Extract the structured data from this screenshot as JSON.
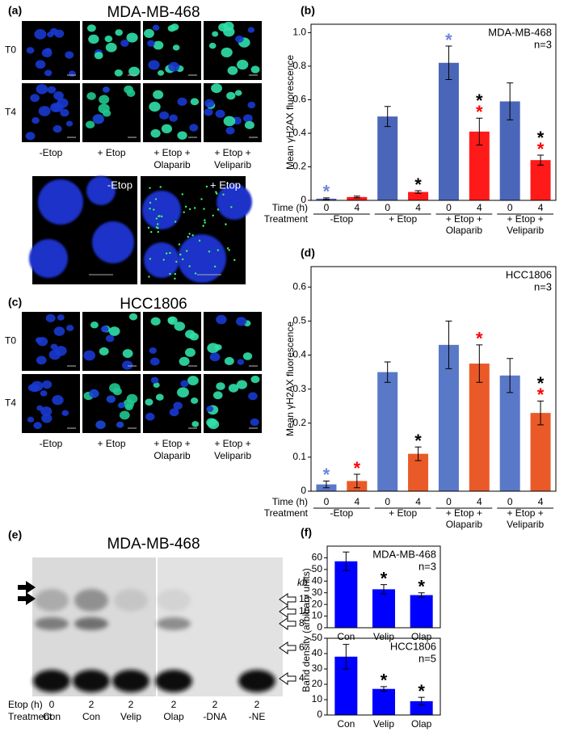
{
  "panel_a": {
    "label": "(a)",
    "title": "MDA-MB-468",
    "rows": [
      "T0",
      "T4"
    ],
    "columns": [
      [
        "-Etop"
      ],
      [
        "+ Etop"
      ],
      [
        "+ Etop +",
        "Olaparib"
      ],
      [
        "+ Etop +",
        "Veliparib"
      ]
    ],
    "zoom_labels": [
      "-Etop",
      "+ Etop"
    ]
  },
  "panel_c": {
    "label": "(c)",
    "title": "HCC1806",
    "rows": [
      "T0",
      "T4"
    ],
    "columns": [
      [
        "-Etop"
      ],
      [
        "+ Etop"
      ],
      [
        "+ Etop +",
        "Olaparib"
      ],
      [
        "+ Etop +",
        "Veliparib"
      ]
    ]
  },
  "panel_e": {
    "label": "(e)",
    "title": "MDA-MB-468",
    "size_unit": "kb",
    "sizes": [
      "15",
      "10",
      "8",
      "6",
      "4"
    ],
    "row_labels": [
      "Etop (h)",
      "Treatment"
    ],
    "etop": [
      "0",
      "2",
      "2",
      "2",
      "2",
      "2"
    ],
    "treatment": [
      "Con",
      "Con",
      "Velip",
      "Olap",
      "-DNA",
      "-NE"
    ]
  },
  "chart_data": [
    {
      "type": "bar",
      "panel": "(b)",
      "title": "MDA-MB-468",
      "subtitle": "n=3",
      "y_label": "Mean γH2AX fluorescence",
      "time_label": "Time (h)",
      "group_label": "Treatment",
      "categories": [
        "0",
        "4",
        "0",
        "4",
        "0",
        "4",
        "0",
        "4"
      ],
      "groups": [
        [
          "-Etop"
        ],
        [
          "+ Etop"
        ],
        [
          "+ Etop +",
          "Olaparib"
        ],
        [
          "+ Etop +",
          "Veliparib"
        ]
      ],
      "values": [
        0.01,
        0.02,
        0.5,
        0.05,
        0.82,
        0.41,
        0.59,
        0.24
      ],
      "errors": [
        0.005,
        0.005,
        0.06,
        0.008,
        0.1,
        0.08,
        0.11,
        0.03
      ],
      "colors": [
        "#4a66b8",
        "#ff1a1a",
        "#4a66b8",
        "#ff1a1a",
        "#4a66b8",
        "#ff1a1a",
        "#4a66b8",
        "#ff1a1a"
      ],
      "stars": [
        [
          {
            "text": "*",
            "color": "#6b86e0"
          }
        ],
        [],
        [],
        [
          {
            "text": "*",
            "color": "#000000"
          }
        ],
        [
          {
            "text": "*",
            "color": "#6b86e0"
          }
        ],
        [
          {
            "text": "*",
            "color": "#ff0000"
          },
          {
            "text": "*",
            "color": "#000000"
          }
        ],
        [],
        [
          {
            "text": "*",
            "color": "#ff0000"
          },
          {
            "text": "*",
            "color": "#000000"
          }
        ]
      ],
      "ylim": [
        0,
        1.05
      ],
      "yticks": [
        0,
        0.2,
        0.4,
        0.6,
        0.8,
        {
          "value": 1,
          "label": "1.0"
        }
      ]
    },
    {
      "type": "bar",
      "panel": "(d)",
      "title": "HCC1806",
      "subtitle": "n=3",
      "y_label": "Mean γH2AX fluorescence",
      "time_label": "Time (h)",
      "group_label": "Treatment",
      "categories": [
        "0",
        "4",
        "0",
        "4",
        "0",
        "4",
        "0",
        "4"
      ],
      "groups": [
        [
          "-Etop"
        ],
        [
          "+ Etop"
        ],
        [
          "+ Etop +",
          "Olaparib"
        ],
        [
          "+ Etop +",
          "Veliparib"
        ]
      ],
      "values": [
        0.02,
        0.03,
        0.35,
        0.11,
        0.43,
        0.375,
        0.34,
        0.23
      ],
      "errors": [
        0.01,
        0.02,
        0.03,
        0.02,
        0.07,
        0.055,
        0.05,
        0.035
      ],
      "colors": [
        "#5a78c8",
        "#ea5a28",
        "#5a78c8",
        "#ea5a28",
        "#5a78c8",
        "#ea5a28",
        "#5a78c8",
        "#ea5a28"
      ],
      "stars": [
        [
          {
            "text": "*",
            "color": "#6b86e0"
          }
        ],
        [
          {
            "text": "*",
            "color": "#ff0000"
          }
        ],
        [],
        [
          {
            "text": "*",
            "color": "#000000"
          }
        ],
        [],
        [
          {
            "text": "*",
            "color": "#ff0000"
          }
        ],
        [],
        [
          {
            "text": "*",
            "color": "#ff0000"
          },
          {
            "text": "*",
            "color": "#000000"
          }
        ]
      ],
      "ylim": [
        0,
        0.66
      ],
      "yticks": [
        0,
        0.1,
        0.2,
        0.3,
        0.4,
        0.5,
        0.6
      ]
    },
    {
      "type": "bar",
      "panel": "(f)",
      "title": "MDA-MB-468",
      "subtitle": "n=3",
      "y_label": "Band density (arbitrary units)",
      "categories": [
        "Con",
        "Velip",
        "Olap"
      ],
      "values": [
        57,
        33,
        28
      ],
      "errors": [
        8,
        4,
        2
      ],
      "colors": [
        "#0000ff",
        "#0000ff",
        "#0000ff"
      ],
      "stars": [
        [],
        [
          {
            "text": "*",
            "color": "#000000"
          }
        ],
        [
          {
            "text": "*",
            "color": "#000000"
          }
        ]
      ],
      "ylim": [
        0,
        70
      ],
      "yticks": [
        0,
        10,
        20,
        30,
        40,
        50,
        60
      ]
    },
    {
      "type": "bar",
      "title": "HCC1806",
      "subtitle": "n=5",
      "categories": [
        "Con",
        "Velip",
        "Olap"
      ],
      "values": [
        38,
        17,
        9
      ],
      "errors": [
        8,
        1.5,
        2.5
      ],
      "colors": [
        "#0000ff",
        "#0000ff",
        "#0000ff"
      ],
      "stars": [
        [],
        [
          {
            "text": "*",
            "color": "#000000"
          }
        ],
        [
          {
            "text": "*",
            "color": "#000000"
          }
        ]
      ],
      "ylim": [
        0,
        50
      ],
      "yticks": [
        0,
        10,
        20,
        30,
        40,
        50
      ]
    }
  ]
}
